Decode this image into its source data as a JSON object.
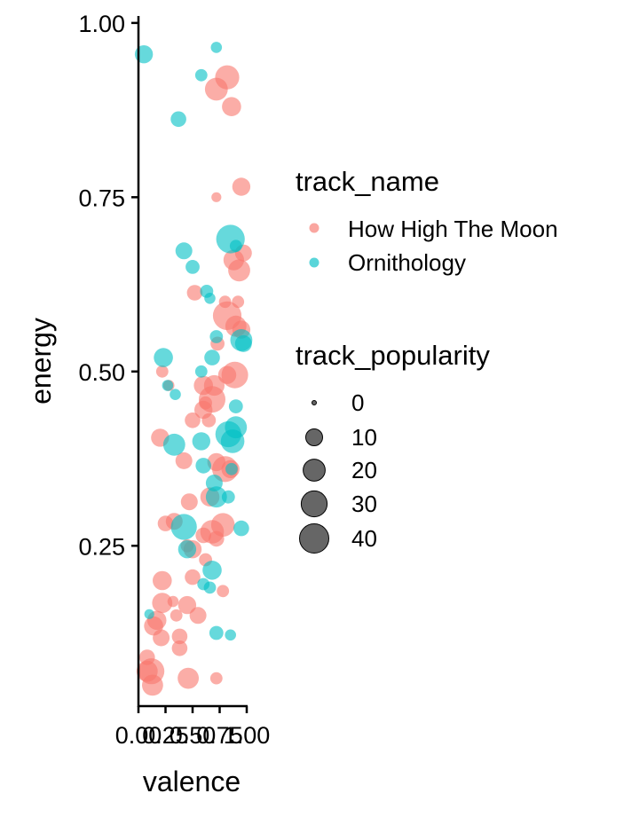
{
  "chart_data": {
    "type": "scatter",
    "xlabel": "valence",
    "ylabel": "energy",
    "xlim": [
      0,
      1
    ],
    "ylim": [
      0.02,
      1.01
    ],
    "x_ticks": [
      0.0,
      0.25,
      0.5,
      0.75,
      1.0
    ],
    "x_tick_labels": [
      "0.00",
      "0.25",
      "0.50",
      "0.75",
      "1.00"
    ],
    "y_ticks": [
      0.25,
      0.5,
      0.75,
      1.0
    ],
    "y_tick_labels": [
      "0.25",
      "0.50",
      "0.75",
      "1.00"
    ],
    "grid": false,
    "legend": {
      "color_title": "track_name",
      "size_title": "track_popularity",
      "size_values": [
        0,
        10,
        20,
        30,
        40
      ],
      "size_labels": [
        "0",
        "10",
        "20",
        "30",
        "40"
      ],
      "position": "right"
    },
    "series": [
      {
        "name": "How High The Moon",
        "color": "#F8766D",
        "points": [
          [
            0.82,
            0.922,
            25
          ],
          [
            0.72,
            0.905,
            22
          ],
          [
            0.86,
            0.88,
            14
          ],
          [
            0.95,
            0.765,
            12
          ],
          [
            0.72,
            0.75,
            2
          ],
          [
            0.93,
            0.645,
            20
          ],
          [
            0.88,
            0.66,
            17
          ],
          [
            0.97,
            0.67,
            10
          ],
          [
            0.52,
            0.613,
            8
          ],
          [
            0.82,
            0.58,
            38
          ],
          [
            0.9,
            0.565,
            18
          ],
          [
            0.95,
            0.56,
            12
          ],
          [
            0.73,
            0.54,
            6
          ],
          [
            0.89,
            0.495,
            32
          ],
          [
            0.82,
            0.495,
            12
          ],
          [
            0.7,
            0.48,
            17
          ],
          [
            0.6,
            0.48,
            14
          ],
          [
            0.68,
            0.46,
            32
          ],
          [
            0.6,
            0.445,
            12
          ],
          [
            0.5,
            0.43,
            8
          ],
          [
            0.65,
            0.43,
            6
          ],
          [
            0.8,
            0.36,
            30
          ],
          [
            0.72,
            0.37,
            12
          ],
          [
            0.2,
            0.405,
            12
          ],
          [
            0.42,
            0.372,
            10
          ],
          [
            0.85,
            0.36,
            12
          ],
          [
            0.66,
            0.32,
            14
          ],
          [
            0.47,
            0.313,
            10
          ],
          [
            0.78,
            0.28,
            24
          ],
          [
            0.68,
            0.27,
            24
          ],
          [
            0.33,
            0.285,
            10
          ],
          [
            0.25,
            0.282,
            8
          ],
          [
            0.5,
            0.245,
            12
          ],
          [
            0.6,
            0.265,
            8
          ],
          [
            0.72,
            0.26,
            8
          ],
          [
            0.45,
            0.25,
            5
          ],
          [
            0.62,
            0.23,
            5
          ],
          [
            0.5,
            0.205,
            8
          ],
          [
            0.22,
            0.2,
            14
          ],
          [
            0.78,
            0.185,
            4
          ],
          [
            0.32,
            0.17,
            3
          ],
          [
            0.22,
            0.168,
            16
          ],
          [
            0.45,
            0.165,
            12
          ],
          [
            0.55,
            0.15,
            10
          ],
          [
            0.17,
            0.143,
            14
          ],
          [
            0.14,
            0.135,
            14
          ],
          [
            0.35,
            0.15,
            4
          ],
          [
            0.21,
            0.118,
            10
          ],
          [
            0.38,
            0.12,
            8
          ],
          [
            0.38,
            0.103,
            8
          ],
          [
            0.08,
            0.09,
            8
          ],
          [
            0.12,
            0.07,
            30
          ],
          [
            0.08,
            0.07,
            18
          ],
          [
            0.13,
            0.05,
            18
          ],
          [
            0.46,
            0.06,
            18
          ],
          [
            0.72,
            0.06,
            4
          ],
          [
            0.22,
            0.5,
            4
          ],
          [
            0.28,
            0.48,
            3
          ],
          [
            0.62,
            0.455,
            5
          ],
          [
            0.8,
            0.6,
            4
          ],
          [
            0.92,
            0.6,
            4
          ]
        ]
      },
      {
        "name": "Ornithology",
        "color": "#00BFC4",
        "points": [
          [
            0.05,
            0.955,
            12
          ],
          [
            0.72,
            0.965,
            3
          ],
          [
            0.58,
            0.925,
            4
          ],
          [
            0.37,
            0.862,
            8
          ],
          [
            0.85,
            0.69,
            38
          ],
          [
            0.42,
            0.673,
            10
          ],
          [
            0.5,
            0.65,
            6
          ],
          [
            0.9,
            0.68,
            4
          ],
          [
            0.63,
            0.615,
            5
          ],
          [
            0.95,
            0.545,
            20
          ],
          [
            0.97,
            0.54,
            10
          ],
          [
            0.23,
            0.52,
            14
          ],
          [
            0.68,
            0.52,
            8
          ],
          [
            0.58,
            0.5,
            4
          ],
          [
            0.34,
            0.467,
            3
          ],
          [
            0.9,
            0.42,
            20
          ],
          [
            0.83,
            0.41,
            30
          ],
          [
            0.87,
            0.4,
            24
          ],
          [
            0.58,
            0.4,
            12
          ],
          [
            0.33,
            0.395,
            20
          ],
          [
            0.6,
            0.365,
            8
          ],
          [
            0.7,
            0.34,
            10
          ],
          [
            0.72,
            0.32,
            18
          ],
          [
            0.83,
            0.32,
            5
          ],
          [
            0.42,
            0.277,
            30
          ],
          [
            0.95,
            0.275,
            8
          ],
          [
            0.45,
            0.245,
            12
          ],
          [
            0.68,
            0.215,
            14
          ],
          [
            0.6,
            0.195,
            4
          ],
          [
            0.66,
            0.19,
            4
          ],
          [
            0.72,
            0.125,
            6
          ],
          [
            0.85,
            0.122,
            3
          ],
          [
            0.1,
            0.152,
            2
          ],
          [
            0.72,
            0.55,
            5
          ],
          [
            0.9,
            0.45,
            6
          ],
          [
            0.27,
            0.48,
            3
          ],
          [
            0.86,
            0.36,
            4
          ],
          [
            0.66,
            0.605,
            3
          ]
        ]
      }
    ]
  }
}
